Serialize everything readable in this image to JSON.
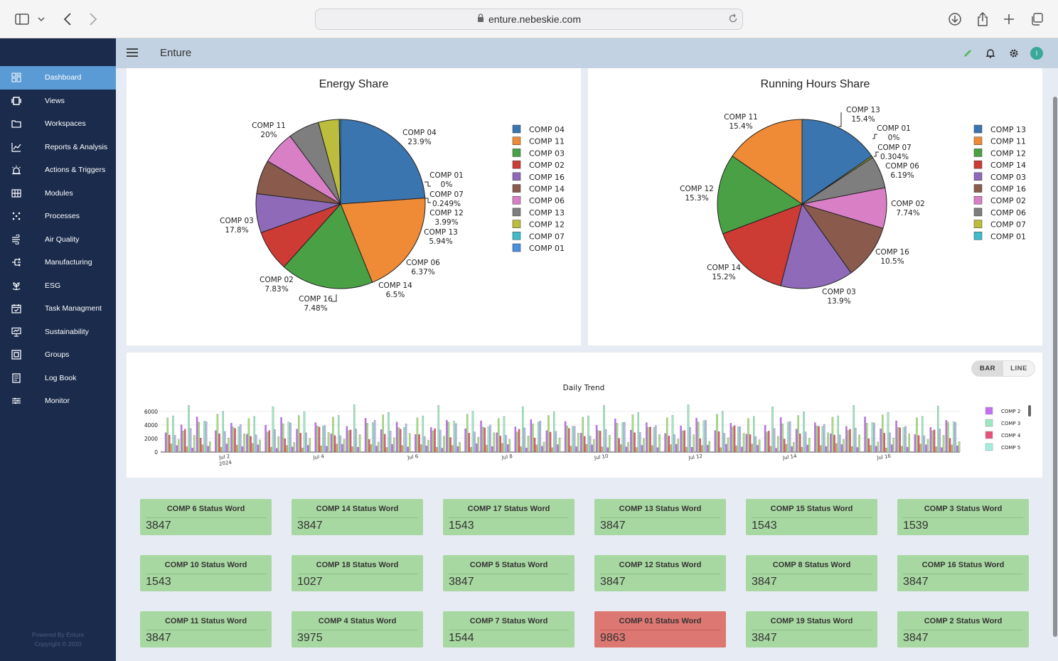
{
  "browser": {
    "url": "enture.nebeskie.com"
  },
  "app": {
    "title": "Enture"
  },
  "sidebar": {
    "items": [
      {
        "label": "Dashboard",
        "icon": "dashboard-icon"
      },
      {
        "label": "Views",
        "icon": "views-icon"
      },
      {
        "label": "Workspaces",
        "icon": "folder-icon"
      },
      {
        "label": "Reports & Analysis",
        "icon": "chart-line-icon"
      },
      {
        "label": "Actions & Triggers",
        "icon": "alarm-icon"
      },
      {
        "label": "Modules",
        "icon": "grid-icon"
      },
      {
        "label": "Processes",
        "icon": "dots-grid-icon"
      },
      {
        "label": "Air Quality",
        "icon": "wind-icon"
      },
      {
        "label": "Manufacturing",
        "icon": "flow-icon"
      },
      {
        "label": "ESG",
        "icon": "plant-icon"
      },
      {
        "label": "Task Managment",
        "icon": "calendar-check-icon"
      },
      {
        "label": "Sustainability",
        "icon": "presentation-icon"
      },
      {
        "label": "Groups",
        "icon": "groups-icon"
      },
      {
        "label": "Log Book",
        "icon": "logbook-icon"
      },
      {
        "label": "Monitor",
        "icon": "monitor-icon"
      }
    ],
    "footer_line1": "Powered By Enture",
    "footer_line2": "Copyright © 2020"
  },
  "colors": {
    "sidebar_bg": "#1a2b4c",
    "active": "#5b9bd5",
    "appbar": "#c3d2e2",
    "status_ok": "#a8d8a1",
    "status_alarm": "#dd7771"
  },
  "trend_toggle": {
    "bar": "BAR",
    "line": "LINE",
    "selected": "BAR"
  },
  "chart_data": [
    {
      "type": "pie",
      "title": "Energy Share",
      "legend_position": "right",
      "slices": [
        {
          "name": "COMP 04",
          "value": 23.9,
          "label": "23.9%",
          "color": "#3a75b0"
        },
        {
          "name": "COMP 11",
          "value": 20,
          "label": "20%",
          "color": "#ef8a36"
        },
        {
          "name": "COMP 03",
          "value": 17.8,
          "label": "17.8%",
          "color": "#4aa145"
        },
        {
          "name": "COMP 02",
          "value": 7.83,
          "label": "7.83%",
          "color": "#cc3b34"
        },
        {
          "name": "COMP 16",
          "value": 7.48,
          "label": "7.48%",
          "color": "#8e6ab8"
        },
        {
          "name": "COMP 14",
          "value": 6.5,
          "label": "6.5%",
          "color": "#8a5a4d"
        },
        {
          "name": "COMP 06",
          "value": 6.37,
          "label": "6.37%",
          "color": "#d97fc6"
        },
        {
          "name": "COMP 13",
          "value": 5.94,
          "label": "5.94%",
          "color": "#7e7e7e"
        },
        {
          "name": "COMP 12",
          "value": 3.99,
          "label": "3.99%",
          "color": "#bcbd3d"
        },
        {
          "name": "COMP 07",
          "value": 0.249,
          "label": "0.249%",
          "color": "#3fbccc"
        },
        {
          "name": "COMP 01",
          "value": 0,
          "label": "0%",
          "color": "#4a8fe0"
        }
      ],
      "legend_order": [
        "COMP 04",
        "COMP 11",
        "COMP 03",
        "COMP 02",
        "COMP 16",
        "COMP 14",
        "COMP 06",
        "COMP 13",
        "COMP 12",
        "COMP 07",
        "COMP 01"
      ]
    },
    {
      "type": "pie",
      "title": "Running Hours Share",
      "legend_position": "right",
      "slices": [
        {
          "name": "COMP 13",
          "value": 15.4,
          "label": "15.4%",
          "color": "#3a75b0"
        },
        {
          "name": "COMP 01",
          "value": 0,
          "label": "0%",
          "color": "#3fbccc"
        },
        {
          "name": "COMP 07",
          "value": 0.304,
          "label": "0.304%",
          "color": "#bcbd3d"
        },
        {
          "name": "COMP 06",
          "value": 6.19,
          "label": "6.19%",
          "color": "#7e7e7e"
        },
        {
          "name": "COMP 02",
          "value": 7.74,
          "label": "7.74%",
          "color": "#d97fc6"
        },
        {
          "name": "COMP 16",
          "value": 10.5,
          "label": "10.5%",
          "color": "#8a5a4d"
        },
        {
          "name": "COMP 03",
          "value": 13.9,
          "label": "13.9%",
          "color": "#8e6ab8"
        },
        {
          "name": "COMP 14",
          "value": 15.2,
          "label": "15.2%",
          "color": "#cc3b34"
        },
        {
          "name": "COMP 12",
          "value": 15.3,
          "label": "15.3%",
          "color": "#4aa145"
        },
        {
          "name": "COMP 11",
          "value": 15.4,
          "label": "15.4%",
          "color": "#ef8a36"
        }
      ],
      "legend_order": [
        "COMP 13",
        "COMP 11",
        "COMP 12",
        "COMP 14",
        "COMP 03",
        "COMP 16",
        "COMP 02",
        "COMP 06",
        "COMP 07",
        "COMP 01"
      ]
    },
    {
      "type": "bar",
      "title": "Daily Trend",
      "ylim": [
        0,
        6500
      ],
      "y_ticks": [
        "0",
        "2000",
        "4000",
        "6000"
      ],
      "x_ticks": [
        "Jul 2\n2024",
        "Jul 4",
        "Jul 6",
        "Jul 8",
        "Jul 10",
        "Jul 12",
        "Jul 14",
        "Jul 16"
      ],
      "legend_position": "right",
      "legend": [
        {
          "name": "COMP 2",
          "color": "#c26ff0"
        },
        {
          "name": "COMP 3",
          "color": "#9be8c2"
        },
        {
          "name": "COMP 4",
          "color": "#e8507a"
        },
        {
          "name": "COMP 5",
          "color": "#9ff0dc"
        }
      ],
      "bar_colors": [
        "#c26ff0",
        "#a6e07a",
        "#e8507a",
        "#d9a86a",
        "#9be8c2",
        "#b8b8f0"
      ],
      "daily_groups": [
        [
          5200,
          5700,
          3800,
          1200,
          6900,
          4500,
          1100,
          2800
        ],
        [
          4800,
          5600,
          3500,
          1300,
          6800,
          4600,
          1200,
          2700
        ],
        [
          5100,
          5400,
          3600,
          1100,
          6700,
          4300,
          1000,
          2600
        ],
        [
          4900,
          5800,
          3700,
          1200,
          7000,
          4400,
          1300,
          2900
        ],
        [
          5000,
          5500,
          3400,
          1250,
          6600,
          4700,
          1150,
          2750
        ],
        [
          4700,
          5700,
          3900,
          1100,
          6900,
          4200,
          1050,
          2650
        ],
        [
          5200,
          5600,
          3600,
          1300,
          6800,
          4500,
          1250,
          2850
        ],
        [
          4800,
          5400,
          3800,
          1200,
          6700,
          4600,
          1100,
          2700
        ],
        [
          5100,
          5800,
          3500,
          1150,
          6900,
          4300,
          1200,
          2800
        ],
        [
          4900,
          5500,
          3700,
          1250,
          6600,
          4400,
          1000,
          2600
        ],
        [
          5000,
          5700,
          3600,
          1100,
          7000,
          4700,
          1300,
          2900
        ],
        [
          4800,
          5600,
          3900,
          1200,
          6800,
          4200,
          1150,
          2750
        ],
        [
          5100,
          5400,
          3500,
          1300,
          6700,
          4500,
          1050,
          2650
        ],
        [
          4900,
          5800,
          3800,
          1250,
          6900,
          4600,
          1250,
          2850
        ],
        [
          5200,
          5500,
          3600,
          1100,
          6600,
          4300,
          1100,
          2700
        ],
        [
          4700,
          5700,
          3700,
          1200,
          6800,
          4400,
          1200,
          2800
        ]
      ]
    }
  ],
  "status_cards": [
    {
      "title": "COMP 6 Status Word",
      "value": "3847",
      "alarm": false
    },
    {
      "title": "COMP 14 Status Word",
      "value": "3847",
      "alarm": false
    },
    {
      "title": "COMP 17 Status Word",
      "value": "1543",
      "alarm": false
    },
    {
      "title": "COMP 13 Status Word",
      "value": "3847",
      "alarm": false
    },
    {
      "title": "COMP 15 Status Word",
      "value": "1543",
      "alarm": false
    },
    {
      "title": "COMP 3 Status Word",
      "value": "1539",
      "alarm": false
    },
    {
      "title": "COMP 10 Status Word",
      "value": "1543",
      "alarm": false
    },
    {
      "title": "COMP 18 Status Word",
      "value": "1027",
      "alarm": false
    },
    {
      "title": "COMP 5 Status Word",
      "value": "3847",
      "alarm": false
    },
    {
      "title": "COMP 12 Status Word",
      "value": "3847",
      "alarm": false
    },
    {
      "title": "COMP 8 Status Word",
      "value": "3847",
      "alarm": false
    },
    {
      "title": "COMP 16 Status Word",
      "value": "3847",
      "alarm": false
    },
    {
      "title": "COMP 11 Status Word",
      "value": "3847",
      "alarm": false
    },
    {
      "title": "COMP 4 Status Word",
      "value": "3975",
      "alarm": false
    },
    {
      "title": "COMP 7 Status Word",
      "value": "1544",
      "alarm": false
    },
    {
      "title": "COMP 01 Status Word",
      "value": "9863",
      "alarm": true
    },
    {
      "title": "COMP 19 Status Word",
      "value": "3847",
      "alarm": false
    },
    {
      "title": "COMP 2 Status Word",
      "value": "3847",
      "alarm": false
    }
  ]
}
